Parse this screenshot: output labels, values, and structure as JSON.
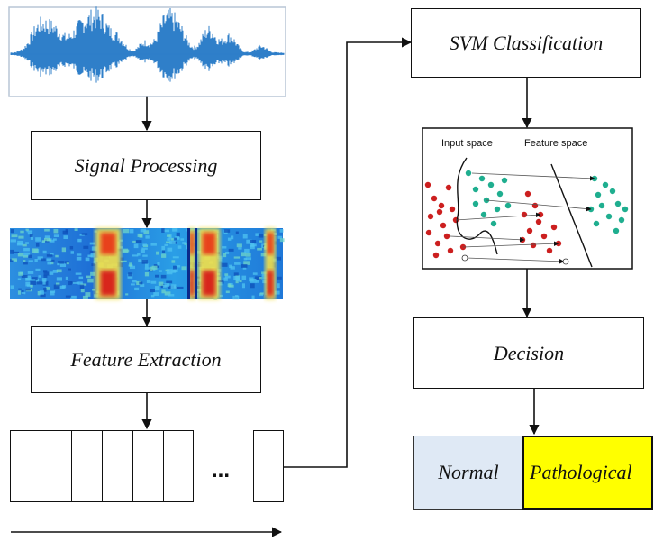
{
  "steps": {
    "signal_processing": "Signal Processing",
    "feature_extraction": "Feature Extraction",
    "svm_classification": "SVM Classification",
    "decision": "Decision"
  },
  "svm_plot": {
    "input_space": "Input space",
    "feature_space": "Feature space"
  },
  "outcomes": {
    "normal": "Normal",
    "pathological": "Pathological"
  },
  "feature_vector": {
    "ellipsis": "..."
  },
  "colors": {
    "waveform": "#2f7fc9",
    "class_a": "#cc1f1f",
    "class_b": "#1fae8f",
    "normal_fill": "#dfe9f5",
    "pathological_fill": "#ffff00"
  }
}
